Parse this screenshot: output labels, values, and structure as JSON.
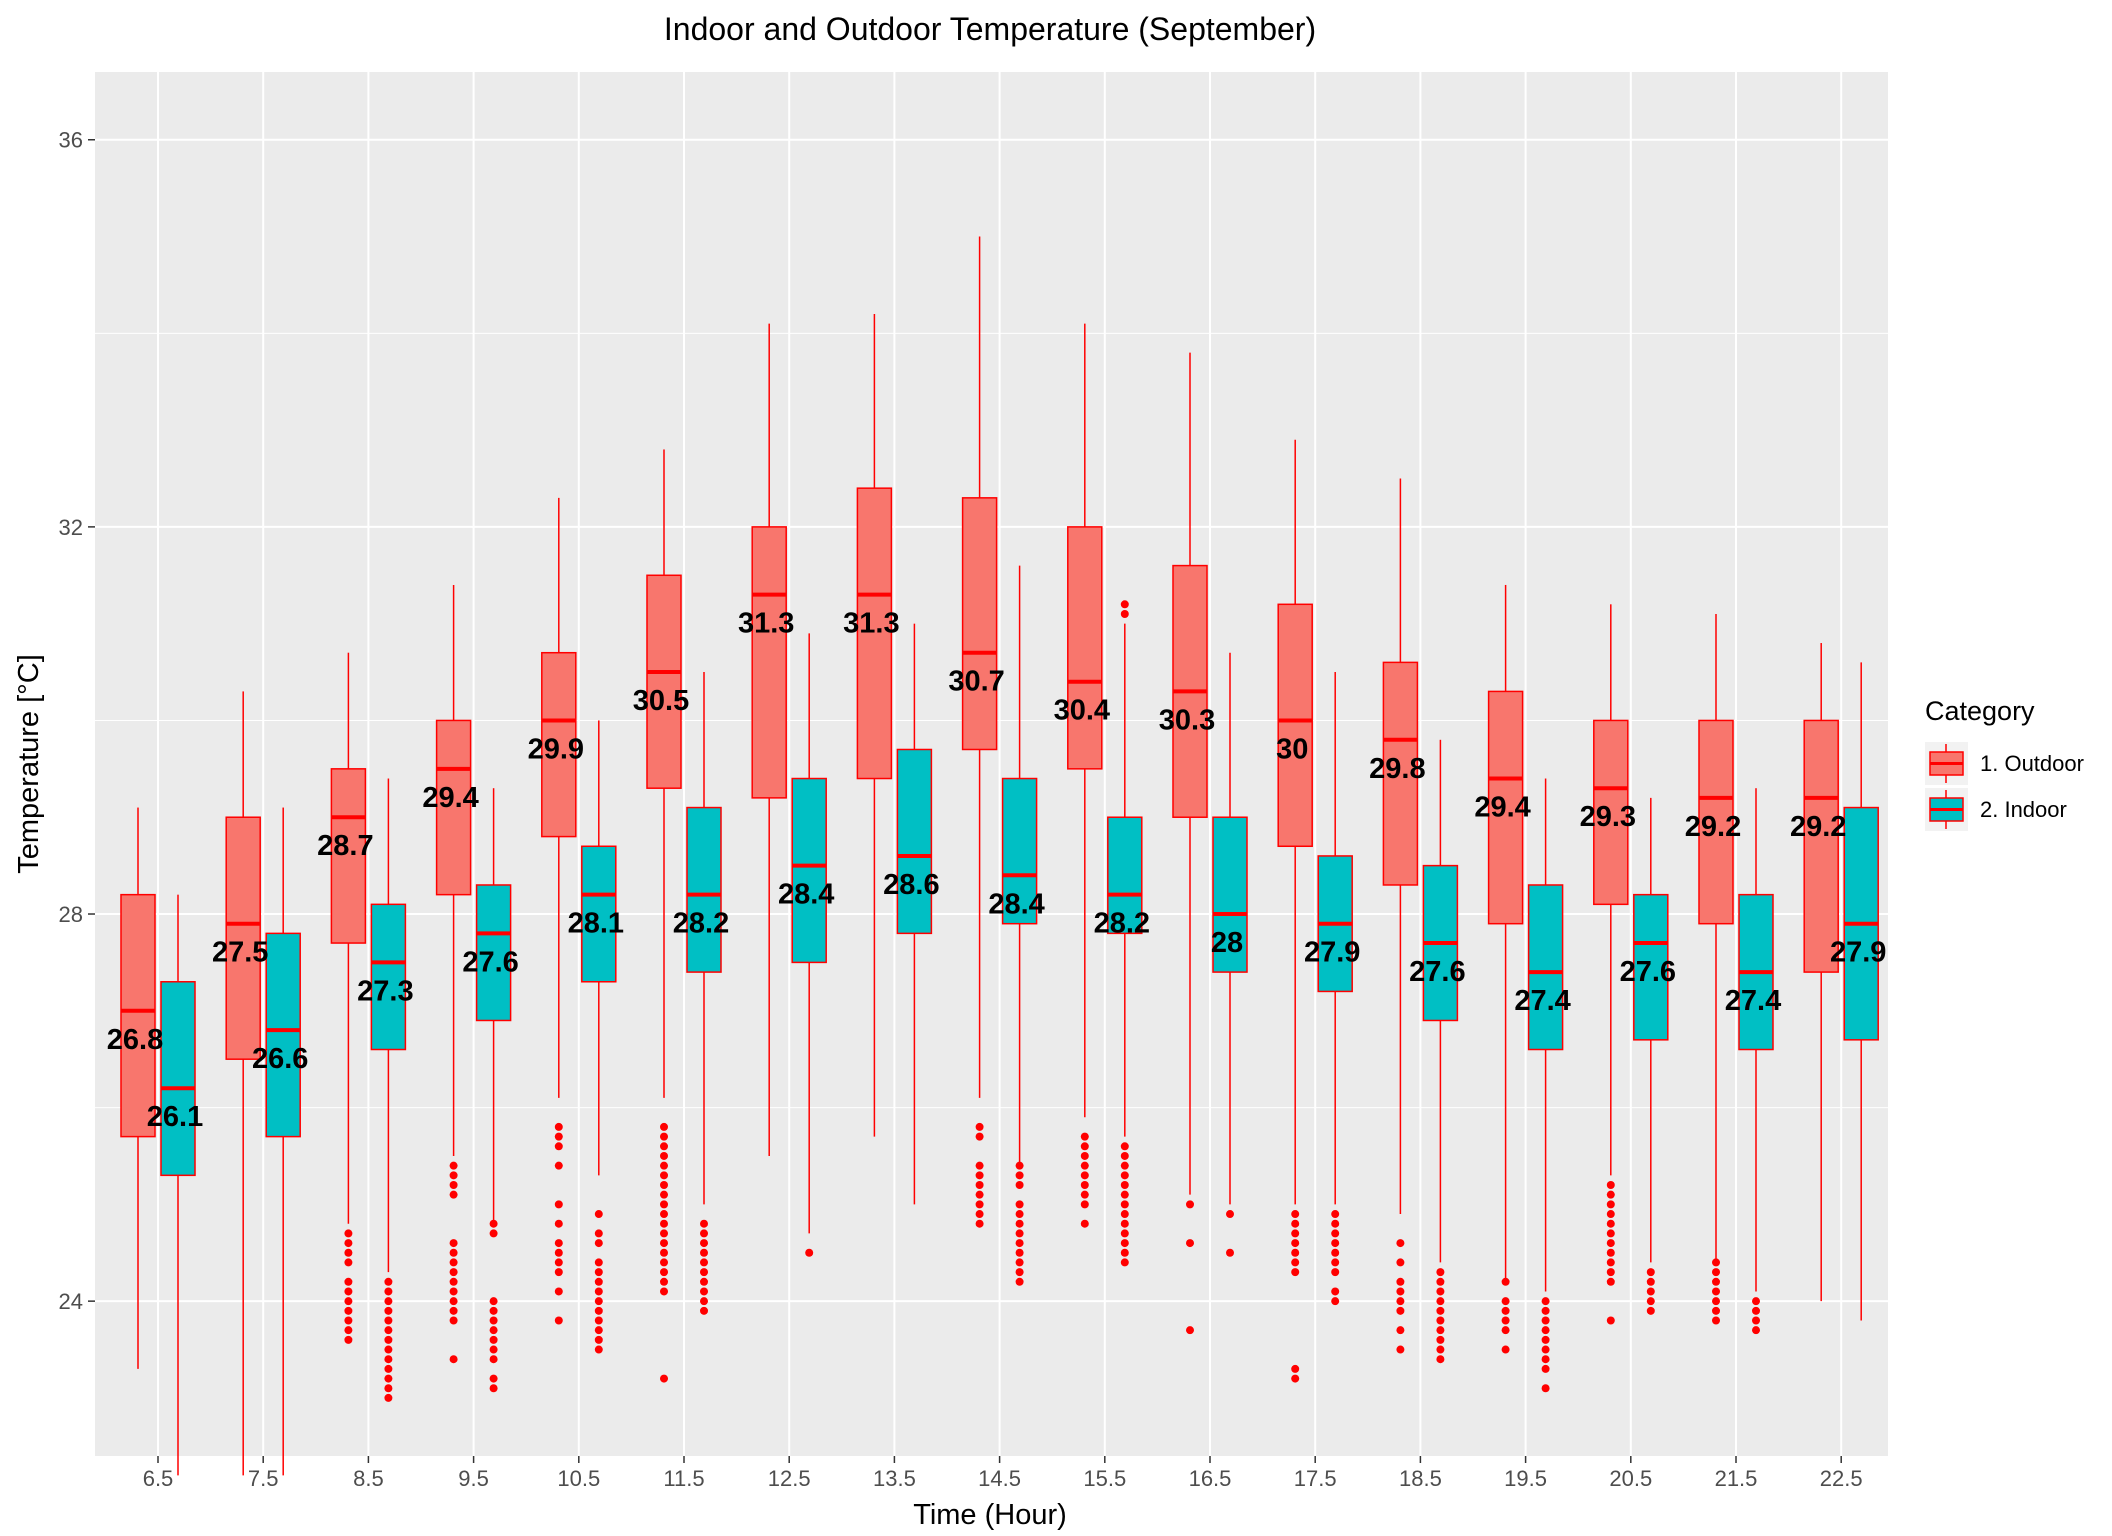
{
  "chart_data": {
    "type": "boxplot",
    "title": "Indoor and Outdoor Temperature (September)",
    "xlabel": "Time (Hour)",
    "ylabel": "Temperature [°C]",
    "ylim": [
      22.4,
      36.7
    ],
    "yticks": [
      24,
      28,
      32,
      36
    ],
    "grid": true,
    "legend": {
      "title": "Category",
      "position": "right",
      "entries": [
        {
          "name": "1. Outdoor",
          "fill": "#f8766d",
          "stroke": "#ff0000"
        },
        {
          "name": "2. Indoor",
          "fill": "#00bfc4",
          "stroke": "#ff0000"
        }
      ]
    },
    "categories": [
      "6.5",
      "7.5",
      "8.5",
      "9.5",
      "10.5",
      "11.5",
      "12.5",
      "13.5",
      "14.5",
      "15.5",
      "16.5",
      "17.5",
      "18.5",
      "19.5",
      "20.5",
      "21.5",
      "22.5"
    ],
    "series": [
      {
        "name": "1. Outdoor",
        "boxes": [
          {
            "min": 23.3,
            "q1": 25.7,
            "median": 27.0,
            "q3": 28.2,
            "max": 29.1,
            "label": "26.8",
            "outliers": []
          },
          {
            "min": 22.2,
            "q1": 26.5,
            "median": 27.9,
            "q3": 29.0,
            "max": 30.3,
            "label": "27.5",
            "outliers": []
          },
          {
            "min": 24.8,
            "q1": 27.7,
            "median": 29.0,
            "q3": 29.5,
            "max": 30.7,
            "label": "28.7",
            "outliers": [
              23.6,
              23.7,
              23.8,
              23.9,
              24.0,
              24.1,
              24.2,
              24.4,
              24.5,
              24.6,
              24.7
            ]
          },
          {
            "min": 25.5,
            "q1": 28.2,
            "median": 29.5,
            "q3": 30.0,
            "max": 31.4,
            "label": "29.4",
            "outliers": [
              23.4,
              23.8,
              23.9,
              24.0,
              24.1,
              24.2,
              24.3,
              24.4,
              24.5,
              24.6,
              25.1,
              25.2,
              25.3,
              25.4
            ]
          },
          {
            "min": 26.1,
            "q1": 28.8,
            "median": 30.0,
            "q3": 30.7,
            "max": 32.3,
            "label": "29.9",
            "outliers": [
              23.8,
              24.1,
              24.3,
              24.4,
              24.5,
              24.6,
              24.8,
              25.0,
              25.4,
              25.6,
              25.7,
              25.8
            ]
          },
          {
            "min": 26.1,
            "q1": 29.3,
            "median": 30.5,
            "q3": 31.5,
            "max": 32.8,
            "label": "30.5",
            "outliers": [
              23.2,
              24.1,
              24.2,
              24.3,
              24.4,
              24.5,
              24.6,
              24.7,
              24.8,
              24.9,
              25.0,
              25.1,
              25.2,
              25.3,
              25.4,
              25.5,
              25.6,
              25.7,
              25.8
            ]
          },
          {
            "min": 25.5,
            "q1": 29.2,
            "median": 31.3,
            "q3": 32.0,
            "max": 34.1,
            "label": "31.3",
            "outliers": []
          },
          {
            "min": 25.7,
            "q1": 29.4,
            "median": 31.3,
            "q3": 32.4,
            "max": 34.2,
            "label": "31.3",
            "outliers": []
          },
          {
            "min": 26.1,
            "q1": 29.7,
            "median": 30.7,
            "q3": 32.3,
            "max": 35.0,
            "label": "30.7",
            "outliers": [
              24.8,
              24.9,
              25.0,
              25.1,
              25.2,
              25.3,
              25.4,
              25.7,
              25.8
            ]
          },
          {
            "min": 25.9,
            "q1": 29.5,
            "median": 30.4,
            "q3": 32.0,
            "max": 34.1,
            "label": "30.4",
            "outliers": [
              24.8,
              25.0,
              25.1,
              25.2,
              25.3,
              25.4,
              25.5,
              25.6,
              25.7
            ]
          },
          {
            "min": 25.1,
            "q1": 29.0,
            "median": 30.3,
            "q3": 31.6,
            "max": 33.8,
            "label": "30.3",
            "outliers": [
              23.7,
              24.6,
              25.0
            ]
          },
          {
            "min": 25.0,
            "q1": 28.7,
            "median": 30.0,
            "q3": 31.2,
            "max": 32.9,
            "label": "30",
            "outliers": [
              23.2,
              23.3,
              24.3,
              24.4,
              24.5,
              24.6,
              24.7,
              24.8,
              24.9
            ]
          },
          {
            "min": 24.9,
            "q1": 28.3,
            "median": 29.8,
            "q3": 30.6,
            "max": 32.5,
            "label": "29.8",
            "outliers": [
              23.5,
              23.7,
              23.9,
              24.0,
              24.1,
              24.2,
              24.4,
              24.6
            ]
          },
          {
            "min": 24.2,
            "q1": 27.9,
            "median": 29.4,
            "q3": 30.3,
            "max": 31.4,
            "label": "29.4",
            "outliers": [
              23.5,
              23.7,
              23.8,
              23.9,
              24.0,
              24.2
            ]
          },
          {
            "min": 25.3,
            "q1": 28.1,
            "median": 29.3,
            "q3": 30.0,
            "max": 31.2,
            "label": "29.3",
            "outliers": [
              23.8,
              24.2,
              24.3,
              24.4,
              24.5,
              24.6,
              24.7,
              24.8,
              24.9,
              25.0,
              25.1,
              25.2
            ]
          },
          {
            "min": 24.4,
            "q1": 27.9,
            "median": 29.2,
            "q3": 30.0,
            "max": 31.1,
            "label": "29.2",
            "outliers": [
              23.8,
              23.9,
              24.0,
              24.1,
              24.2,
              24.3,
              24.4
            ]
          },
          {
            "min": 24.0,
            "q1": 27.4,
            "median": 29.2,
            "q3": 30.0,
            "max": 30.8,
            "label": "29.2",
            "outliers": []
          }
        ]
      },
      {
        "name": "2. Indoor",
        "boxes": [
          {
            "min": 22.2,
            "q1": 25.3,
            "median": 26.2,
            "q3": 27.3,
            "max": 28.2,
            "label": "26.1",
            "outliers": []
          },
          {
            "min": 22.2,
            "q1": 25.7,
            "median": 26.8,
            "q3": 27.8,
            "max": 29.1,
            "label": "26.6",
            "outliers": []
          },
          {
            "min": 24.3,
            "q1": 26.6,
            "median": 27.5,
            "q3": 28.1,
            "max": 29.4,
            "label": "27.3",
            "outliers": [
              23.0,
              23.1,
              23.2,
              23.3,
              23.4,
              23.5,
              23.6,
              23.7,
              23.8,
              23.9,
              24.0,
              24.1,
              24.2
            ]
          },
          {
            "min": 24.8,
            "q1": 26.9,
            "median": 27.8,
            "q3": 28.3,
            "max": 29.3,
            "label": "27.6",
            "outliers": [
              23.1,
              23.2,
              23.4,
              23.5,
              23.6,
              23.7,
              23.8,
              23.9,
              24.0,
              24.7,
              24.8
            ]
          },
          {
            "min": 25.3,
            "q1": 27.3,
            "median": 28.2,
            "q3": 28.7,
            "max": 30.0,
            "label": "28.1",
            "outliers": [
              23.5,
              23.6,
              23.7,
              23.8,
              23.9,
              24.0,
              24.1,
              24.2,
              24.3,
              24.4,
              24.6,
              24.7,
              24.9
            ]
          },
          {
            "min": 25.0,
            "q1": 27.4,
            "median": 28.2,
            "q3": 29.1,
            "max": 30.5,
            "label": "28.2",
            "outliers": [
              23.9,
              24.0,
              24.1,
              24.2,
              24.3,
              24.4,
              24.5,
              24.6,
              24.7,
              24.8
            ]
          },
          {
            "min": 24.7,
            "q1": 27.5,
            "median": 28.5,
            "q3": 29.4,
            "max": 30.9,
            "label": "28.4",
            "outliers": [
              24.5
            ]
          },
          {
            "min": 25.0,
            "q1": 27.8,
            "median": 28.6,
            "q3": 29.7,
            "max": 31.0,
            "label": "28.6",
            "outliers": []
          },
          {
            "min": 25.4,
            "q1": 27.9,
            "median": 28.4,
            "q3": 29.4,
            "max": 31.6,
            "label": "28.4",
            "outliers": [
              24.2,
              24.3,
              24.4,
              24.5,
              24.6,
              24.7,
              24.8,
              24.9,
              25.0,
              25.2,
              25.3,
              25.4
            ]
          },
          {
            "min": 25.7,
            "q1": 27.8,
            "median": 28.2,
            "q3": 29.0,
            "max": 31.0,
            "label": "28.2",
            "outliers": [
              24.4,
              24.5,
              24.6,
              24.7,
              24.8,
              24.9,
              25.0,
              25.1,
              25.2,
              25.3,
              25.4,
              25.5,
              25.6,
              31.1,
              31.2
            ]
          },
          {
            "min": 25.0,
            "q1": 27.4,
            "median": 28.0,
            "q3": 29.0,
            "max": 30.7,
            "label": "28",
            "outliers": [
              24.5,
              24.9
            ]
          },
          {
            "min": 25.0,
            "q1": 27.2,
            "median": 27.9,
            "q3": 28.6,
            "max": 30.5,
            "label": "27.9",
            "outliers": [
              24.0,
              24.1,
              24.3,
              24.4,
              24.5,
              24.6,
              24.7,
              24.8,
              24.9
            ]
          },
          {
            "min": 24.4,
            "q1": 26.9,
            "median": 27.7,
            "q3": 28.5,
            "max": 29.8,
            "label": "27.6",
            "outliers": [
              23.4,
              23.5,
              23.6,
              23.7,
              23.8,
              23.9,
              24.0,
              24.1,
              24.2,
              24.3
            ]
          },
          {
            "min": 24.1,
            "q1": 26.6,
            "median": 27.4,
            "q3": 28.3,
            "max": 29.4,
            "label": "27.4",
            "outliers": [
              23.1,
              23.3,
              23.4,
              23.5,
              23.6,
              23.7,
              23.8,
              23.9,
              24.0
            ]
          },
          {
            "min": 24.4,
            "q1": 26.7,
            "median": 27.7,
            "q3": 28.2,
            "max": 29.2,
            "label": "27.6",
            "outliers": [
              23.9,
              24.0,
              24.1,
              24.2,
              24.3
            ]
          },
          {
            "min": 24.1,
            "q1": 26.6,
            "median": 27.4,
            "q3": 28.2,
            "max": 29.3,
            "label": "27.4",
            "outliers": [
              23.7,
              23.8,
              23.9,
              24.0
            ]
          },
          {
            "min": 23.8,
            "q1": 26.7,
            "median": 27.9,
            "q3": 29.1,
            "max": 30.6,
            "label": "27.9",
            "outliers": []
          }
        ]
      }
    ]
  }
}
